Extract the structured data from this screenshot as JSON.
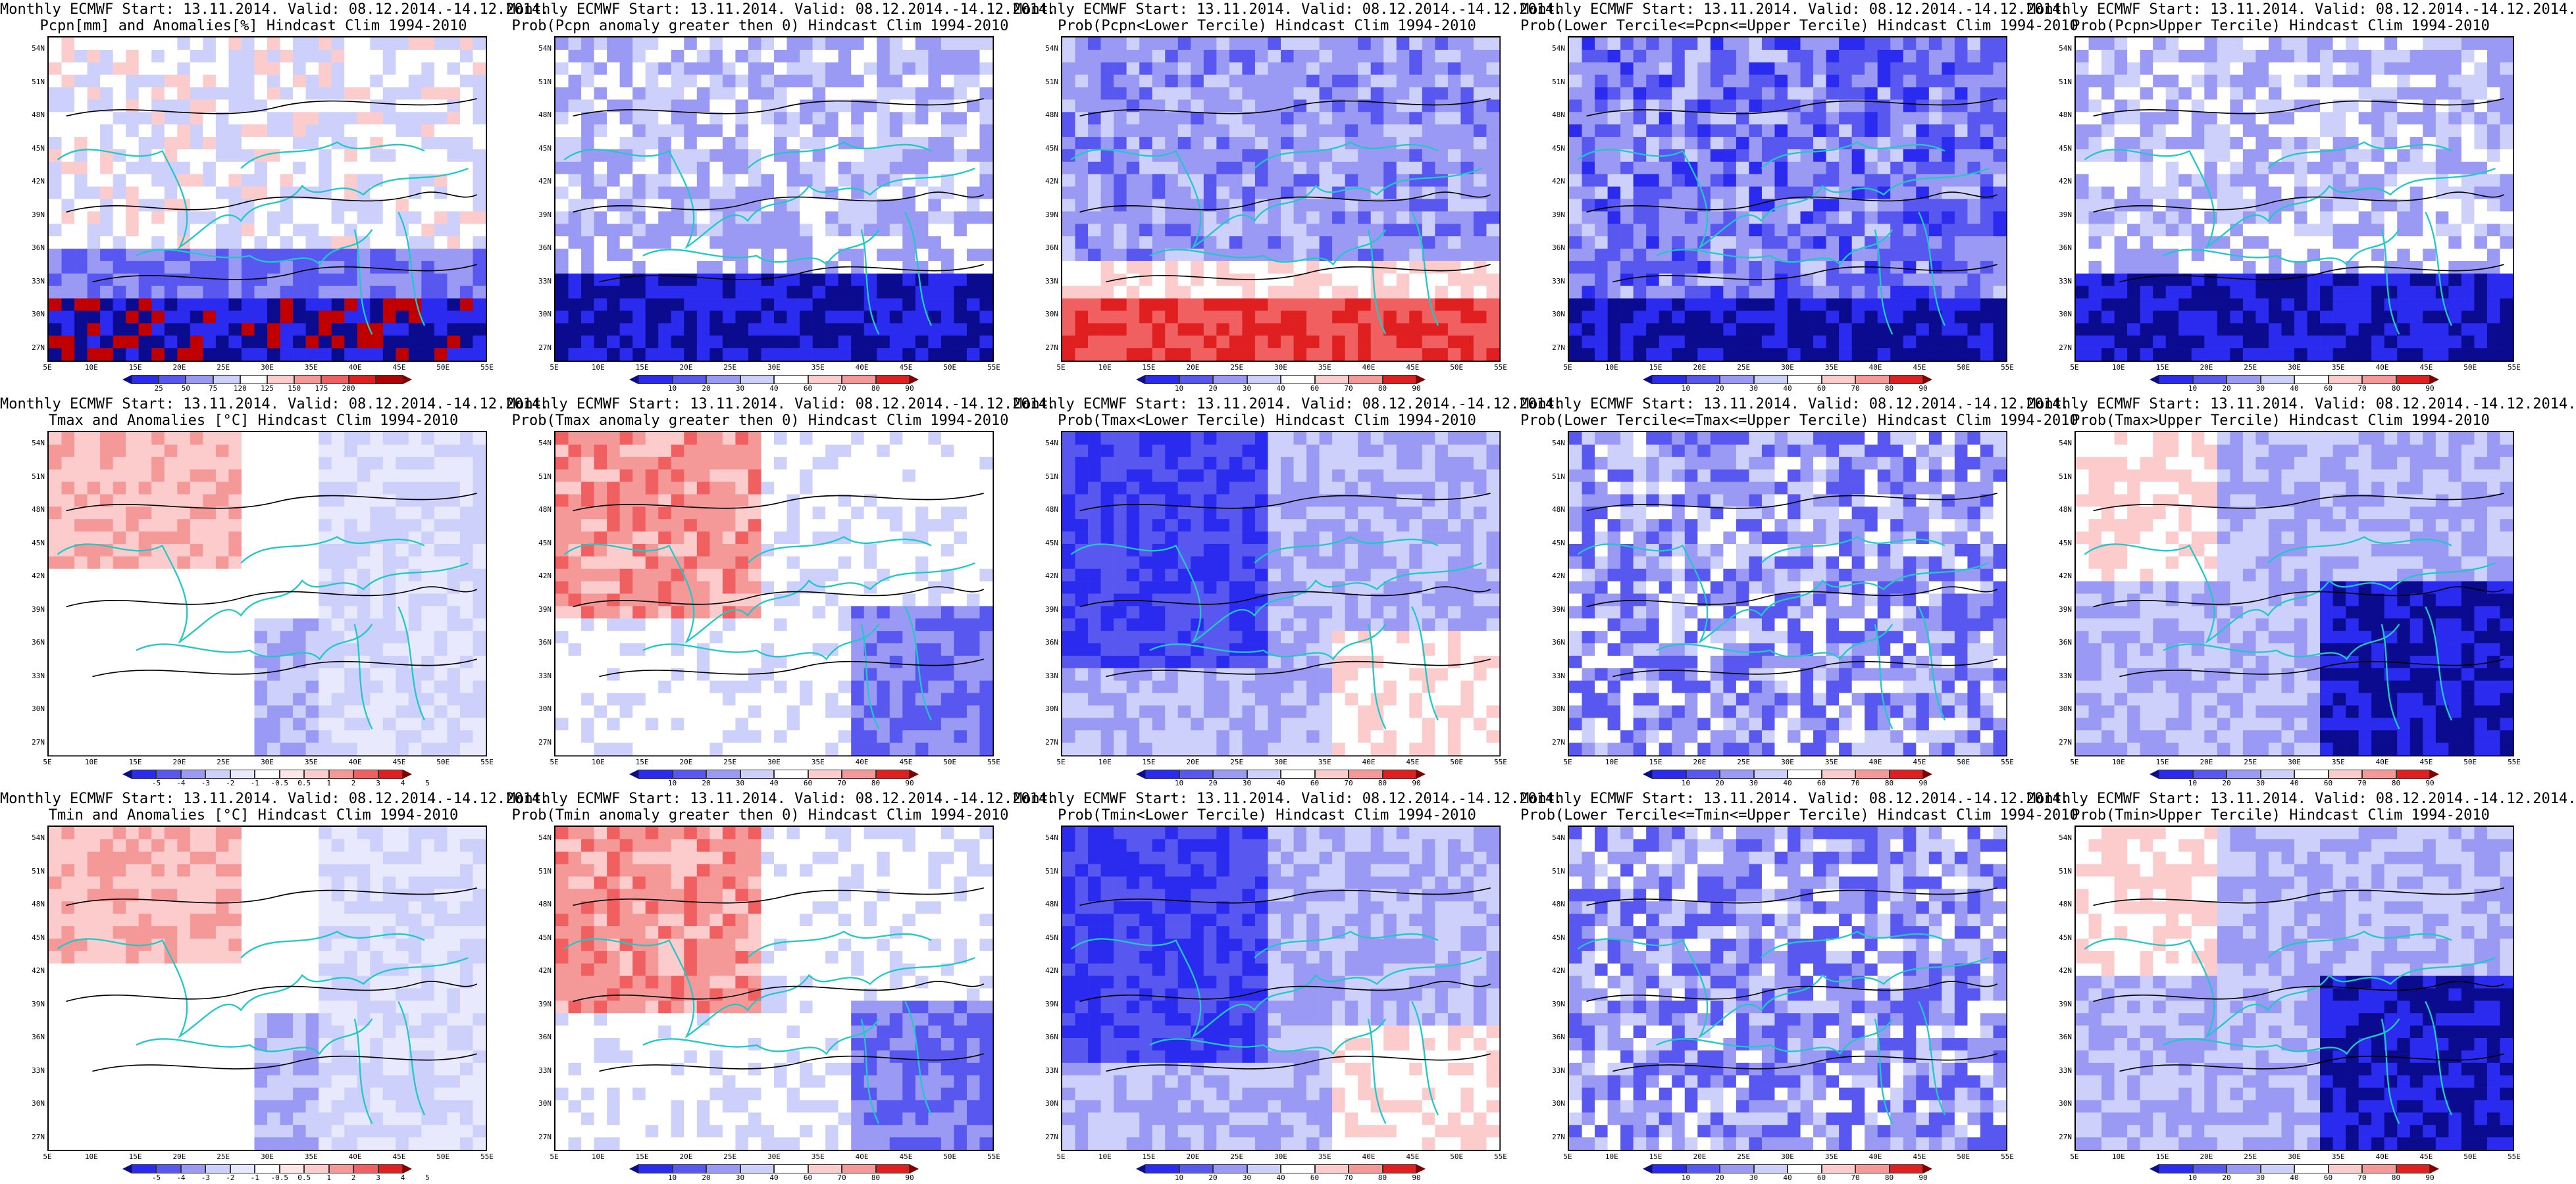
{
  "figure": {
    "lat_labels": [
      "54N",
      "51N",
      "48N",
      "45N",
      "42N",
      "39N",
      "36N",
      "33N",
      "30N",
      "27N"
    ],
    "lon_labels": [
      "5E",
      "10E",
      "15E",
      "20E",
      "25E",
      "30E",
      "35E",
      "40E",
      "45E",
      "50E",
      "55E"
    ],
    "panels": [
      {
        "id": "pcpn-anom",
        "row": 0,
        "col": 0,
        "title1": "Monthly ECMWF Start: 13.11.2014. Valid: 08.12.2014.-14.12.2014.",
        "title2": "Pcpn[mm] and Anomalies[%] Hindcast Clim 1994-2010",
        "colorbar": "pcpn",
        "pattern": "pcpn_anom"
      },
      {
        "id": "prob-pcpn-gt0",
        "row": 0,
        "col": 1,
        "title1": "Monthly ECMWF Start: 13.11.2014. Valid: 08.12.2014.-14.12.2014.",
        "title2": "Prob(Pcpn anomaly greater then 0) Hindcast Clim 1994-2010",
        "colorbar": "prob",
        "pattern": "blue_south"
      },
      {
        "id": "prob-pcpn-lower",
        "row": 0,
        "col": 2,
        "title1": "Monthly ECMWF Start: 13.11.2014. Valid: 08.12.2014.-14.12.2014.",
        "title2": "Prob(Pcpn<Lower Tercile) Hindcast Clim 1994-2010",
        "colorbar": "prob",
        "pattern": "red_south"
      },
      {
        "id": "prob-pcpn-middle",
        "row": 0,
        "col": 3,
        "title1": "Monthly ECMWF Start: 13.11.2014. Valid: 08.12.2014.-14.12.2014.",
        "title2": "Prob(Lower Tercile<=Pcpn<=Upper Tercile) Hindcast Clim 1994-2010",
        "colorbar": "prob",
        "pattern": "blue_all"
      },
      {
        "id": "prob-pcpn-upper",
        "row": 0,
        "col": 4,
        "title1": "Monthly ECMWF Start: 13.11.2014. Valid: 08.12.2014.-14.12.2014.",
        "title2": "Prob(Pcpn>Upper Tercile) Hindcast Clim 1994-2010",
        "colorbar": "prob",
        "pattern": "blue_south"
      },
      {
        "id": "tmax-anom",
        "row": 1,
        "col": 0,
        "title1": "Monthly ECMWF Start: 13.11.2014. Valid: 08.12.2014.-14.12.2014.",
        "title2": "Tmax and Anomalies [°C] Hindcast Clim 1994-2010",
        "colorbar": "temp",
        "pattern": "red_nw_light"
      },
      {
        "id": "prob-tmax-gt0",
        "row": 1,
        "col": 1,
        "title1": "Monthly ECMWF Start: 13.11.2014. Valid: 08.12.2014.-14.12.2014.",
        "title2": "Prob(Tmax anomaly greater then 0) Hindcast Clim 1994-2010",
        "colorbar": "prob",
        "pattern": "red_nw"
      },
      {
        "id": "prob-tmax-lower",
        "row": 1,
        "col": 2,
        "title1": "Monthly ECMWF Start: 13.11.2014. Valid: 08.12.2014.-14.12.2014.",
        "title2": "Prob(Tmax<Lower Tercile) Hindcast Clim 1994-2010",
        "colorbar": "prob",
        "pattern": "blue_nw"
      },
      {
        "id": "prob-tmax-middle",
        "row": 1,
        "col": 3,
        "title1": "Monthly ECMWF Start: 13.11.2014. Valid: 08.12.2014.-14.12.2014.",
        "title2": "Prob(Lower Tercile<=Tmax<=Upper Tercile) Hindcast Clim 1994-2010",
        "colorbar": "prob",
        "pattern": "blue_mixed"
      },
      {
        "id": "prob-tmax-upper",
        "row": 1,
        "col": 4,
        "title1": "Monthly ECMWF Start: 13.11.2014. Valid: 08.12.2014.-14.12.2014.",
        "title2": "Prob(Tmax>Upper Tercile) Hindcast Clim 1994-2010",
        "colorbar": "prob",
        "pattern": "blue_se"
      },
      {
        "id": "tmin-anom",
        "row": 2,
        "col": 0,
        "title1": "Monthly ECMWF Start: 13.11.2014. Valid: 08.12.2014.-14.12.2014.",
        "title2": "Tmin and Anomalies [°C] Hindcast Clim 1994-2010",
        "colorbar": "temp",
        "pattern": "red_nw_light"
      },
      {
        "id": "prob-tmin-gt0",
        "row": 2,
        "col": 1,
        "title1": "Monthly ECMWF Start: 13.11.2014. Valid: 08.12.2014.-14.12.2014.",
        "title2": "Prob(Tmin anomaly greater then 0) Hindcast Clim 1994-2010",
        "colorbar": "prob",
        "pattern": "red_nw"
      },
      {
        "id": "prob-tmin-lower",
        "row": 2,
        "col": 2,
        "title1": "Monthly ECMWF Start: 13.11.2014. Valid: 08.12.2014.-14.12.2014.",
        "title2": "Prob(Tmin<Lower Tercile) Hindcast Clim 1994-2010",
        "colorbar": "prob",
        "pattern": "blue_nw"
      },
      {
        "id": "prob-tmin-middle",
        "row": 2,
        "col": 3,
        "title1": "Monthly ECMWF Start: 13.11.2014. Valid: 08.12.2014.-14.12.2014.",
        "title2": "Prob(Lower Tercile<=Tmin<=Upper Tercile) Hindcast Clim 1994-2010",
        "colorbar": "prob",
        "pattern": "blue_mixed"
      },
      {
        "id": "prob-tmin-upper",
        "row": 2,
        "col": 4,
        "title1": "Monthly ECMWF Start: 13.11.2014. Valid: 08.12.2014.-14.12.2014.",
        "title2": "Prob(Tmin>Upper Tercile) Hindcast Clim 1994-2010",
        "colorbar": "prob",
        "pattern": "blue_se"
      }
    ],
    "colorbars": {
      "pcpn": {
        "ticks": [
          "25",
          "50",
          "75",
          "120",
          "125",
          "150",
          "175",
          "200"
        ],
        "colors": [
          "#0b0b8f",
          "#2b2bf0",
          "#5858f0",
          "#9a9af5",
          "#cdd0fa",
          "#ffffff",
          "#fccccc",
          "#f59898",
          "#f06060",
          "#e02020",
          "#b00000",
          "#800000"
        ]
      },
      "prob": {
        "ticks": [
          "10",
          "20",
          "30",
          "40",
          "60",
          "70",
          "80",
          "90"
        ],
        "colors": [
          "#0b0b8f",
          "#2b2bf0",
          "#5858f0",
          "#9a9af5",
          "#cdd0fa",
          "#ffffff",
          "#fccccc",
          "#f59898",
          "#e02020",
          "#800000"
        ]
      },
      "temp": {
        "ticks": [
          "-5",
          "-4",
          "-3",
          "-2",
          "-1",
          "-0.5",
          "0.5",
          "1",
          "2",
          "3",
          "4",
          "5"
        ],
        "colors": [
          "#0b0b8f",
          "#2b2bf0",
          "#5858f0",
          "#9a9af5",
          "#cdd0fa",
          "#e8e9fc",
          "#ffffff",
          "#fde6e6",
          "#fccccc",
          "#f59898",
          "#f06060",
          "#e02020",
          "#800000"
        ]
      }
    }
  }
}
